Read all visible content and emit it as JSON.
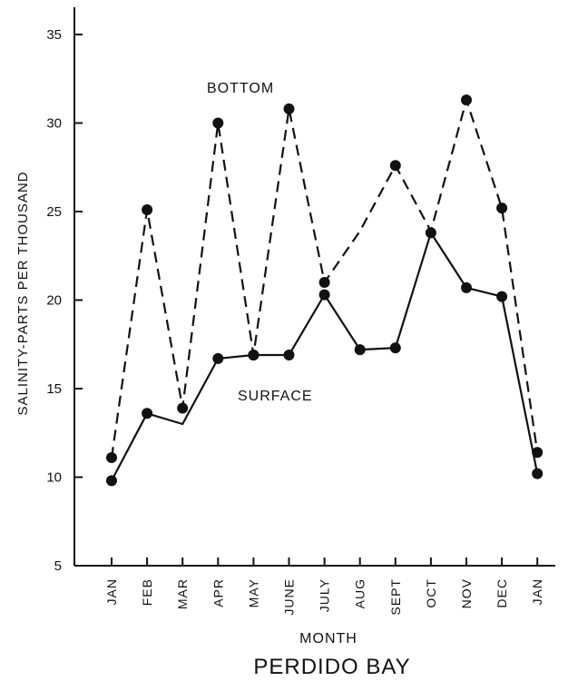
{
  "chart_data": {
    "type": "line",
    "title": "PERDIDO BAY",
    "xlabel": "MONTH",
    "ylabel": "SALINITY-PARTS PER THOUSAND",
    "categories": [
      "JAN",
      "FEB",
      "MAR",
      "APR",
      "MAY",
      "JUNE",
      "JULY",
      "AUG",
      "SEPT",
      "OCT",
      "NOV",
      "DEC",
      "JAN"
    ],
    "yticks": [
      "5",
      "10",
      "15",
      "20",
      "25",
      "30",
      "35"
    ],
    "ylim": [
      5,
      36
    ],
    "grid": false,
    "series": [
      {
        "name": "BOTTOM",
        "style": "dashed",
        "values": [
          11.1,
          25.1,
          13.9,
          30.0,
          16.9,
          30.8,
          21.0,
          23.9,
          27.6,
          23.9,
          31.3,
          25.2,
          11.4
        ],
        "markers": [
          true,
          true,
          true,
          true,
          true,
          true,
          true,
          false,
          true,
          false,
          true,
          true,
          true
        ]
      },
      {
        "name": "SURFACE",
        "style": "solid",
        "values": [
          9.8,
          13.6,
          13.0,
          16.7,
          16.9,
          16.9,
          20.3,
          17.2,
          17.3,
          23.8,
          20.7,
          20.2,
          10.2
        ],
        "markers": [
          true,
          true,
          false,
          true,
          true,
          true,
          true,
          true,
          true,
          true,
          true,
          true,
          true
        ]
      }
    ],
    "colors": {
      "line": "#111111"
    }
  }
}
